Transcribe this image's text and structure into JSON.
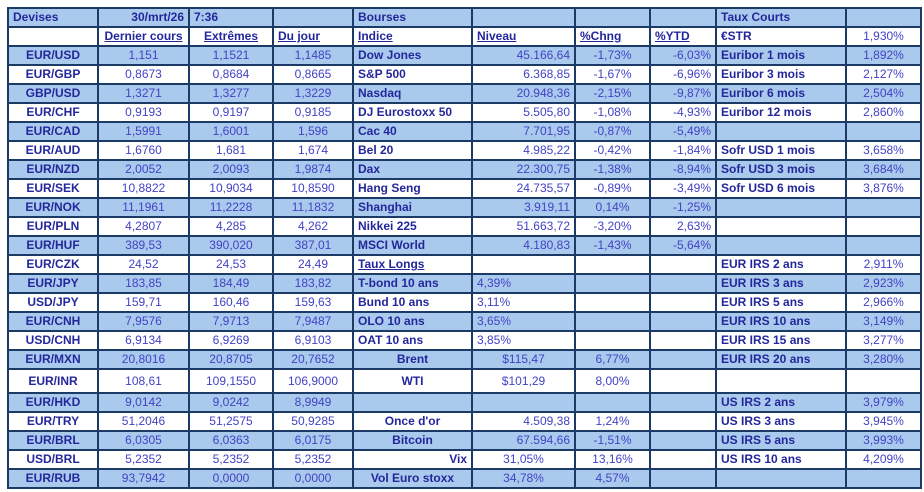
{
  "colors": {
    "row_blue": "#A9CAEC",
    "border_navy": "#1B3A66",
    "label_text": "#23279B",
    "value_text": "#4242C6"
  },
  "devises": {
    "title": "Devises",
    "date": "30/mrt/26",
    "time": "7:36",
    "col_headers": [
      "Dernier cours",
      "Extrêmes",
      "Du jour"
    ],
    "rows": [
      {
        "pair": "EUR/USD",
        "last": "1,151",
        "extremes": "1,1521",
        "dujour": "1,1485"
      },
      {
        "pair": "EUR/GBP",
        "last": "0,8673",
        "extremes": "0,8684",
        "dujour": "0,8665"
      },
      {
        "pair": "GBP/USD",
        "last": "1,3271",
        "extremes": "1,3277",
        "dujour": "1,3229"
      },
      {
        "pair": "EUR/CHF",
        "last": "0,9193",
        "extremes": "0,9197",
        "dujour": "0,9185"
      },
      {
        "pair": "EUR/CAD",
        "last": "1,5991",
        "extremes": "1,6001",
        "dujour": "1,596"
      },
      {
        "pair": "EUR/AUD",
        "last": "1,6760",
        "extremes": "1,681",
        "dujour": "1,674"
      },
      {
        "pair": "EUR/NZD",
        "last": "2,0052",
        "extremes": "2,0093",
        "dujour": "1,9874"
      },
      {
        "pair": "EUR/SEK",
        "last": "10,8822",
        "extremes": "10,9034",
        "dujour": "10,8590"
      },
      {
        "pair": "EUR/NOK",
        "last": "11,1961",
        "extremes": "11,2228",
        "dujour": "11,1832"
      },
      {
        "pair": "EUR/PLN",
        "last": "4,2807",
        "extremes": "4,285",
        "dujour": "4,262"
      },
      {
        "pair": "EUR/HUF",
        "last": "389,53",
        "extremes": "390,020",
        "dujour": "387,01"
      },
      {
        "pair": "EUR/CZK",
        "last": "24,52",
        "extremes": "24,53",
        "dujour": "24,49"
      },
      {
        "pair": "EUR/JPY",
        "last": "183,85",
        "extremes": "184,49",
        "dujour": "183,82"
      },
      {
        "pair": "USD/JPY",
        "last": "159,71",
        "extremes": "160,46",
        "dujour": "159,63"
      },
      {
        "pair": "EUR/CNH",
        "last": "7,9576",
        "extremes": "7,9713",
        "dujour": "7,9487"
      },
      {
        "pair": "USD/CNH",
        "last": "6,9134",
        "extremes": "6,9269",
        "dujour": "6,9103"
      },
      {
        "pair": "EUR/MXN",
        "last": "20,8016",
        "extremes": "20,8705",
        "dujour": "20,7652"
      },
      {
        "pair": "EUR/INR",
        "last": "108,61",
        "extremes": "109,1550",
        "dujour": "106,9000"
      },
      {
        "pair": "EUR/HKD",
        "last": "9,0142",
        "extremes": "9,0242",
        "dujour": "8,9949"
      },
      {
        "pair": "EUR/TRY",
        "last": "51,2046",
        "extremes": "51,2575",
        "dujour": "50,9285"
      },
      {
        "pair": "EUR/BRL",
        "last": "6,0305",
        "extremes": "6,0363",
        "dujour": "6,0175"
      },
      {
        "pair": "USD/BRL",
        "last": "5,2352",
        "extremes": "5,2352",
        "dujour": "5,2352"
      },
      {
        "pair": "EUR/RUB",
        "last": "93,7942",
        "extremes": "0,0000",
        "dujour": "0,0000"
      }
    ]
  },
  "bourses": {
    "title": "Bourses",
    "col_headers": [
      "Indice",
      "Niveau",
      "%Chng",
      "%YTD"
    ],
    "rows": [
      {
        "label": "Dow Jones",
        "niveau": "45.166,64",
        "chng": "-1,73%",
        "ytd": "-6,03%"
      },
      {
        "label": "S&P 500",
        "niveau": "6.368,85",
        "chng": "-1,67%",
        "ytd": "-6,96%"
      },
      {
        "label": "Nasdaq",
        "niveau": "20.948,36",
        "chng": "-2,15%",
        "ytd": "-9,87%"
      },
      {
        "label": "DJ Eurostoxx 50",
        "niveau": "5.505,80",
        "chng": "-1,08%",
        "ytd": "-4,93%"
      },
      {
        "label": "Cac 40",
        "niveau": "7.701,95",
        "chng": "-0,87%",
        "ytd": "-5,49%"
      },
      {
        "label": "Bel 20",
        "niveau": "4.985,22",
        "chng": "-0,42%",
        "ytd": "-1,84%"
      },
      {
        "label": "Dax",
        "niveau": "22.300,75",
        "chng": "-1,38%",
        "ytd": "-8,94%"
      },
      {
        "label": "Hang Seng",
        "niveau": "24.735,57",
        "chng": "-0,89%",
        "ytd": "-3,49%"
      },
      {
        "label": "Shanghai",
        "niveau": "3.919,11",
        "chng": "0,14%",
        "ytd": "-1,25%"
      },
      {
        "label": "Nikkei 225",
        "niveau": "51.663,72",
        "chng": "-3,20%",
        "ytd": "2,63%"
      },
      {
        "label": "MSCI World",
        "niveau": "4.180,83",
        "chng": "-1,43%",
        "ytd": "-5,64%"
      },
      {
        "label": "Taux Longs",
        "underline": true,
        "niveau": "",
        "chng": "",
        "ytd": ""
      },
      {
        "label": "T-bond 10 ans",
        "niveau": "4,39%",
        "niveau_align": "l",
        "chng": "",
        "ytd": ""
      },
      {
        "label": "Bund 10 ans",
        "niveau": "3,11%",
        "niveau_align": "l",
        "chng": "",
        "ytd": ""
      },
      {
        "label": "OLO 10 ans",
        "niveau": "3,65%",
        "niveau_align": "l",
        "chng": "",
        "ytd": ""
      },
      {
        "label": "OAT 10 ans",
        "niveau": "3,85%",
        "niveau_align": "l",
        "chng": "",
        "ytd": ""
      },
      {
        "label": "Brent",
        "label_align": "c",
        "niveau": "$115,47",
        "niveau_align": "c",
        "chng": "6,77%",
        "ytd": ""
      },
      {
        "label": "WTI",
        "label_align": "c",
        "niveau": "$101,29",
        "niveau_align": "c",
        "chng": "8,00%",
        "ytd": ""
      },
      {
        "label": "",
        "niveau": "",
        "chng": "",
        "ytd": ""
      },
      {
        "label": "Once d'or",
        "label_align": "c",
        "niveau": "4.509,38",
        "chng": "1,24%",
        "ytd": ""
      },
      {
        "label": "Bitcoin",
        "label_align": "c",
        "niveau": "67.594,66",
        "chng": "-1,51%",
        "ytd": ""
      },
      {
        "label": "Vix",
        "label_align": "r",
        "niveau": "31,05%",
        "niveau_align": "c",
        "chng": "13,16%",
        "ytd": ""
      },
      {
        "label": "Vol Euro stoxx",
        "label_align": "c",
        "niveau": "34,78%",
        "niveau_align": "c",
        "chng": "4,57%",
        "ytd": ""
      }
    ]
  },
  "taux_courts": {
    "title": "Taux Courts",
    "estr_label": "€STR",
    "estr_value": "1,930%",
    "rows": [
      {
        "label": "Euribor 1 mois",
        "value": "1,892%"
      },
      {
        "label": "Euribor 3 mois",
        "value": "2,127%"
      },
      {
        "label": "Euribor 6 mois",
        "value": "2,504%"
      },
      {
        "label": "Euribor 12 mois",
        "value": "2,860%"
      },
      {
        "label": "",
        "value": ""
      },
      {
        "label": "Sofr USD 1 mois",
        "value": "3,658%"
      },
      {
        "label": "Sofr USD 3 mois",
        "value": "3,684%"
      },
      {
        "label": "Sofr USD 6 mois",
        "value": "3,876%"
      },
      {
        "label": "",
        "value": ""
      },
      {
        "label": "",
        "value": ""
      },
      {
        "label": "",
        "value": ""
      },
      {
        "label": "EUR IRS 2 ans",
        "value": "2,911%"
      },
      {
        "label": "EUR IRS 3 ans",
        "value": "2,923%"
      },
      {
        "label": "EUR IRS 5 ans",
        "value": "2,966%"
      },
      {
        "label": "EUR IRS 10 ans",
        "value": "3,149%"
      },
      {
        "label": "EUR IRS 15 ans",
        "value": "3,277%"
      },
      {
        "label": "EUR IRS 20 ans",
        "value": "3,280%"
      },
      {
        "label": "",
        "value": ""
      },
      {
        "label": "US IRS 2 ans",
        "value": "3,979%"
      },
      {
        "label": "US IRS 3 ans",
        "value": "3,945%"
      },
      {
        "label": "US IRS 5 ans",
        "value": "3,993%"
      },
      {
        "label": "US IRS 10 ans",
        "value": "4,209%"
      },
      {
        "label": "",
        "value": ""
      }
    ]
  }
}
